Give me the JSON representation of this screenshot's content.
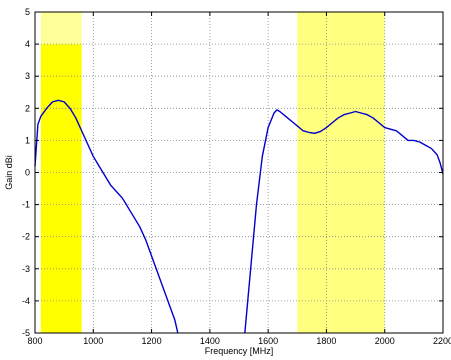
{
  "chart_data": {
    "type": "line",
    "title": "",
    "xlabel": "Frequency [MHz]",
    "ylabel": "Gain dBi",
    "xlim": [
      800,
      2200
    ],
    "ylim": [
      -5,
      5
    ],
    "xticks": [
      800,
      1000,
      1200,
      1400,
      1600,
      1800,
      2000,
      2200
    ],
    "yticks": [
      -5,
      -4,
      -3,
      -2,
      -1,
      0,
      1,
      2,
      3,
      4,
      5
    ],
    "grid": true,
    "grid_style": "dotted",
    "legend": "none",
    "colors": {
      "line": "#0000cc",
      "band_light": "#ffff80",
      "band_strong": "#ffff00",
      "band_pale": "#ffff99",
      "grid": "#888888",
      "axis": "#000000"
    },
    "bands": [
      {
        "x": [
          820,
          960
        ],
        "y": [
          -5,
          4
        ],
        "color": "#ffff00"
      },
      {
        "x": [
          820,
          960
        ],
        "y": [
          4,
          5
        ],
        "color": "#ffff99"
      },
      {
        "x": [
          1700,
          2000
        ],
        "y": [
          -5,
          5
        ],
        "color": "#ffff80"
      }
    ],
    "series": [
      {
        "color": "#0000cc",
        "segments": [
          {
            "x": [
              800,
              810,
              820,
              840,
              860,
              880,
              900,
              920,
              940,
              960,
              980,
              1000,
              1020,
              1040,
              1060,
              1080,
              1100,
              1120,
              1140,
              1160,
              1180,
              1200,
              1220,
              1240,
              1260,
              1280,
              1290
            ],
            "y": [
              0.2,
              1.5,
              1.75,
              2.0,
              2.2,
              2.25,
              2.2,
              2.0,
              1.7,
              1.3,
              0.9,
              0.5,
              0.2,
              -0.1,
              -0.4,
              -0.6,
              -0.8,
              -1.1,
              -1.4,
              -1.7,
              -2.1,
              -2.6,
              -3.1,
              -3.6,
              -4.1,
              -4.6,
              -5.0
            ]
          },
          {
            "x": [
              1520,
              1540,
              1560,
              1580,
              1600,
              1620,
              1630,
              1640,
              1660,
              1680,
              1700,
              1720,
              1740,
              1760,
              1780,
              1800,
              1820,
              1840,
              1860,
              1880,
              1900,
              1920,
              1940,
              1960,
              1980,
              2000,
              2020,
              2040,
              2060,
              2080,
              2100,
              2120,
              2140,
              2160,
              2180,
              2190,
              2200
            ],
            "y": [
              -5.0,
              -3.0,
              -1.0,
              0.5,
              1.4,
              1.85,
              1.95,
              1.9,
              1.75,
              1.6,
              1.45,
              1.3,
              1.25,
              1.22,
              1.28,
              1.4,
              1.55,
              1.7,
              1.8,
              1.85,
              1.9,
              1.85,
              1.8,
              1.7,
              1.55,
              1.4,
              1.35,
              1.3,
              1.15,
              1.0,
              1.0,
              0.95,
              0.85,
              0.75,
              0.55,
              0.3,
              -0.05
            ]
          }
        ]
      }
    ]
  }
}
